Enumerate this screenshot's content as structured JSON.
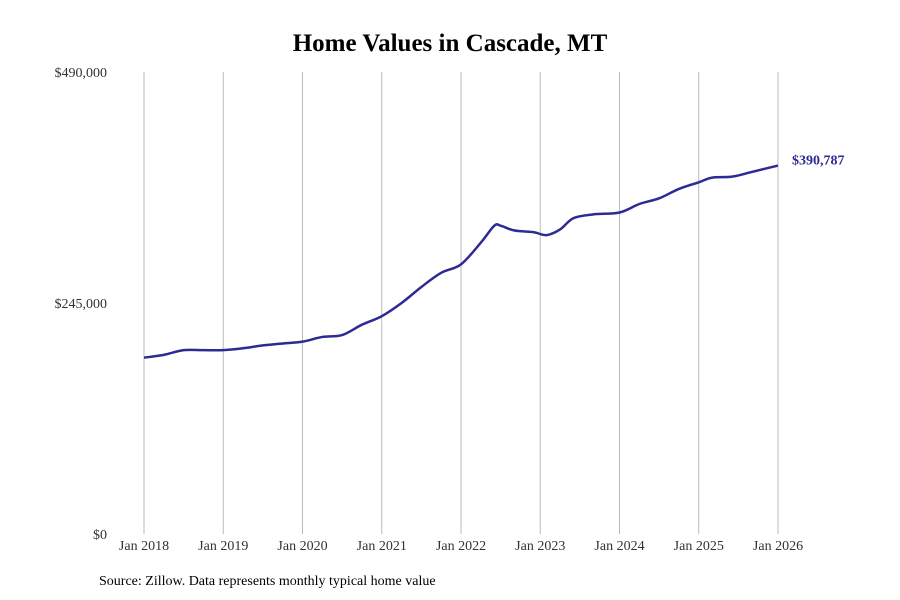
{
  "chart_data": {
    "type": "line",
    "title": "Home Values in Cascade, MT",
    "xlabel": "",
    "ylabel": "",
    "ylim": [
      0,
      490000
    ],
    "xlim": [
      2018.0,
      2026.0
    ],
    "grid": "vertical",
    "y_ticks": [
      {
        "value": 0,
        "label": "$0"
      },
      {
        "value": 245000,
        "label": "$245,000"
      },
      {
        "value": 490000,
        "label": "$490,000"
      }
    ],
    "x_ticks": [
      {
        "value": 2018,
        "label": "Jan 2018"
      },
      {
        "value": 2019,
        "label": "Jan 2019"
      },
      {
        "value": 2020,
        "label": "Jan 2020"
      },
      {
        "value": 2021,
        "label": "Jan 2021"
      },
      {
        "value": 2022,
        "label": "Jan 2022"
      },
      {
        "value": 2023,
        "label": "Jan 2023"
      },
      {
        "value": 2024,
        "label": "Jan 2024"
      },
      {
        "value": 2025,
        "label": "Jan 2025"
      },
      {
        "value": 2026,
        "label": "Jan 2026"
      }
    ],
    "series": [
      {
        "name": "Typical home value",
        "color": "#2e2a94",
        "x": [
          2018.0,
          2018.25,
          2018.5,
          2018.75,
          2019.0,
          2019.25,
          2019.5,
          2019.75,
          2020.0,
          2020.25,
          2020.5,
          2020.75,
          2021.0,
          2021.25,
          2021.5,
          2021.75,
          2022.0,
          2022.25,
          2022.42,
          2022.5,
          2022.67,
          2022.92,
          2023.08,
          2023.25,
          2023.42,
          2023.67,
          2024.0,
          2024.25,
          2024.5,
          2024.75,
          2025.0,
          2025.17,
          2025.42,
          2025.67,
          2026.0
        ],
        "values": [
          187000,
          190000,
          195000,
          195000,
          195000,
          197000,
          200000,
          202000,
          204000,
          209000,
          211000,
          222000,
          231000,
          245000,
          262000,
          277000,
          286000,
          309000,
          327000,
          327000,
          322000,
          320000,
          317000,
          323000,
          335000,
          339000,
          341000,
          350000,
          356000,
          366000,
          373000,
          378000,
          379000,
          384000,
          390787
        ]
      }
    ],
    "end_label": "$390,787"
  },
  "source": "Source: Zillow. Data represents monthly typical home value"
}
